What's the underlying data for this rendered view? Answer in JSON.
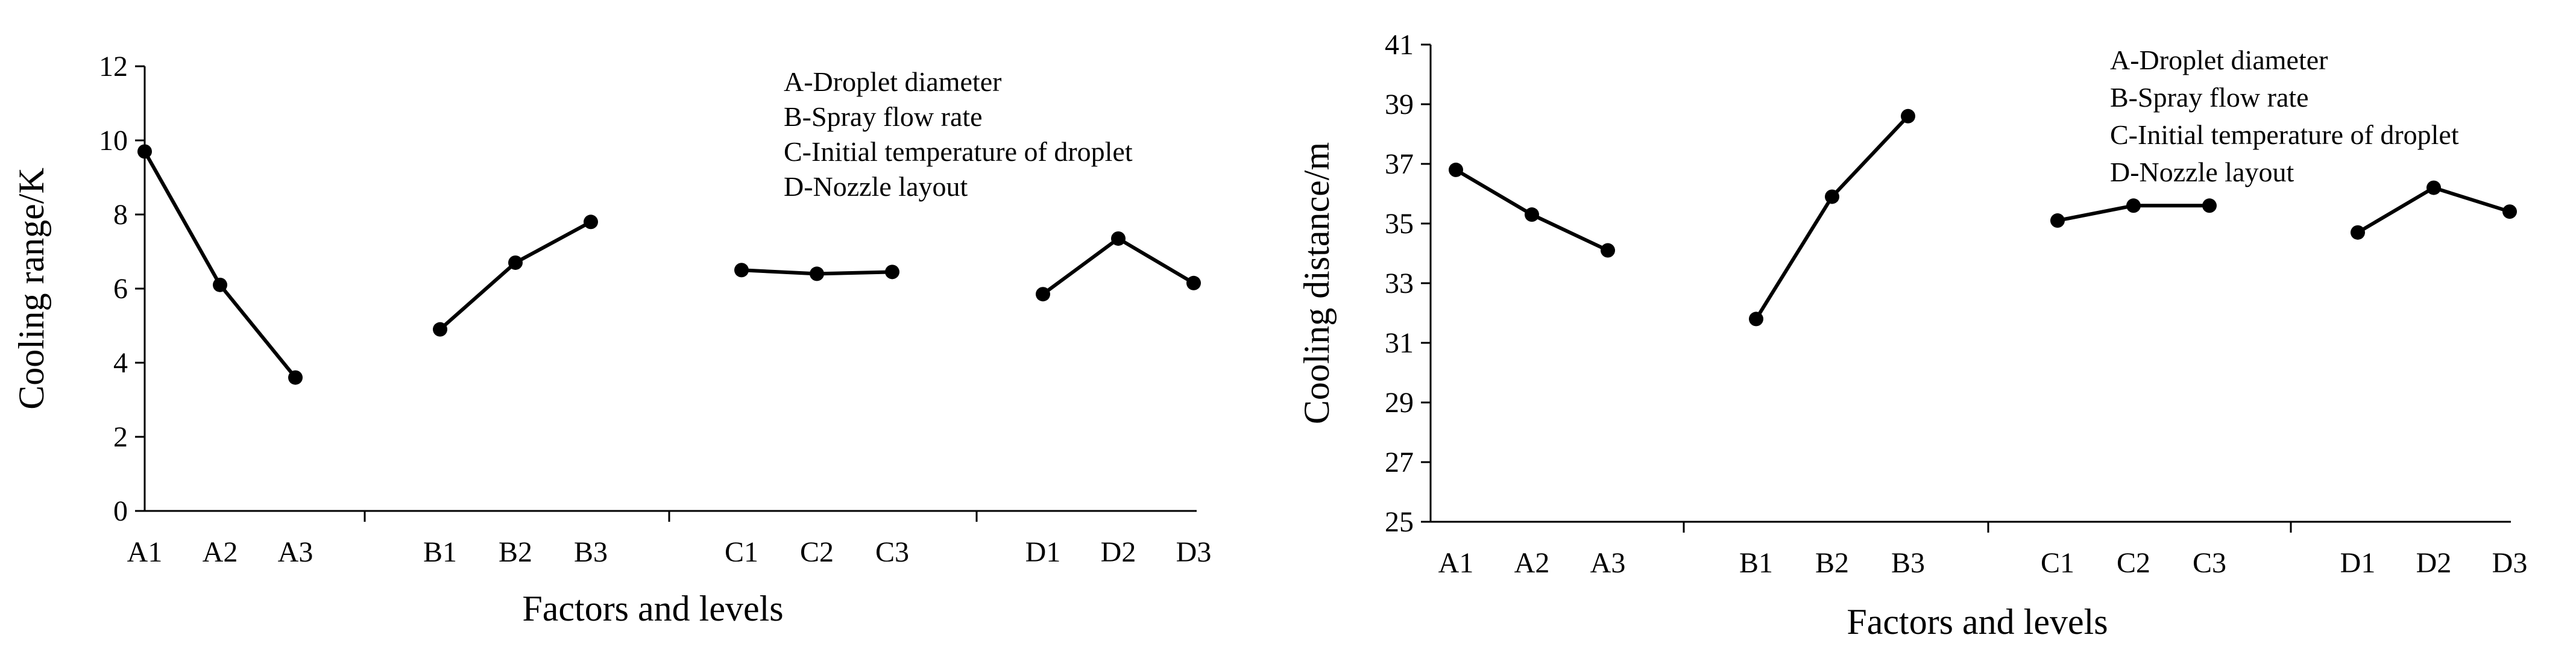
{
  "chart_data": [
    {
      "type": "line",
      "title": "",
      "xlabel": "Factors and levels",
      "ylabel": "Cooling range/K",
      "ylim": [
        0,
        12
      ],
      "yticks": [
        "0",
        "2",
        "4",
        "6",
        "8",
        "10",
        "12"
      ],
      "grid": false,
      "legend_position": "top-right",
      "legend": [
        "A-Droplet diameter",
        "B-Spray flow rate",
        "C-Initial temperature of droplet",
        "D-Nozzle layout"
      ],
      "categories": [
        "A1",
        "A2",
        "A3",
        "B1",
        "B2",
        "B3",
        "C1",
        "C2",
        "C3",
        "D1",
        "D2",
        "D3"
      ],
      "groups": [
        {
          "labels": [
            "A1",
            "A2",
            "A3"
          ],
          "values": [
            9.7,
            6.1,
            3.6
          ]
        },
        {
          "labels": [
            "B1",
            "B2",
            "B3"
          ],
          "values": [
            4.9,
            6.7,
            7.8
          ]
        },
        {
          "labels": [
            "C1",
            "C2",
            "C3"
          ],
          "values": [
            6.5,
            6.4,
            6.45
          ]
        },
        {
          "labels": [
            "D1",
            "D2",
            "D3"
          ],
          "values": [
            5.85,
            7.35,
            6.15
          ]
        }
      ]
    },
    {
      "type": "line",
      "title": "",
      "xlabel": "Factors and levels",
      "ylabel": "Cooling distance/m",
      "ylim": [
        25,
        41
      ],
      "yticks": [
        "25",
        "27",
        "29",
        "31",
        "33",
        "35",
        "37",
        "39",
        "41"
      ],
      "grid": false,
      "legend_position": "top-right",
      "legend": [
        "A-Droplet diameter",
        "B-Spray flow rate",
        "C-Initial temperature of droplet",
        "D-Nozzle layout"
      ],
      "categories": [
        "A1",
        "A2",
        "A3",
        "B1",
        "B2",
        "B3",
        "C1",
        "C2",
        "C3",
        "D1",
        "D2",
        "D3"
      ],
      "groups": [
        {
          "labels": [
            "A1",
            "A2",
            "A3"
          ],
          "values": [
            36.8,
            35.3,
            34.1
          ]
        },
        {
          "labels": [
            "B1",
            "B2",
            "B3"
          ],
          "values": [
            31.8,
            35.9,
            38.6
          ]
        },
        {
          "labels": [
            "C1",
            "C2",
            "C3"
          ],
          "values": [
            35.1,
            35.6,
            35.6
          ]
        },
        {
          "labels": [
            "D1",
            "D2",
            "D3"
          ],
          "values": [
            34.7,
            36.2,
            35.4
          ]
        }
      ]
    }
  ]
}
